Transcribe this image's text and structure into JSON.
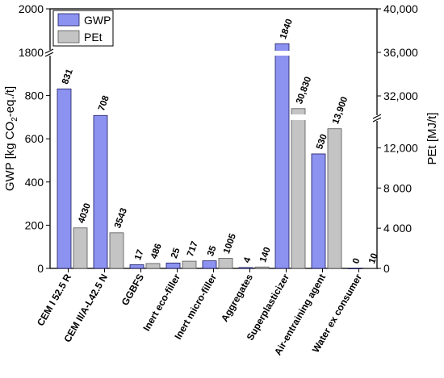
{
  "chart_data": {
    "type": "bar",
    "categories": [
      "CEM I 52.5 R",
      "CEM II/A-L42.5 N",
      "GGBFS",
      "Inert eco-filler",
      "Inert micro-filler",
      "Aggregates",
      "Superplasticizer",
      "Air-entraining agent",
      "Water ex consumer"
    ],
    "series": [
      {
        "name": "GWP",
        "axis": "left",
        "color": "#8c92f0",
        "values": [
          831,
          708,
          17,
          25,
          35,
          4,
          1840,
          530,
          0
        ],
        "labels": [
          "831",
          "708",
          "17",
          "25",
          "35",
          "4",
          "1840",
          "530",
          "0"
        ]
      },
      {
        "name": "PEt",
        "axis": "right",
        "color": "#c4c4c4",
        "values": [
          4030,
          3543,
          486,
          717,
          1005,
          140,
          30830,
          13900,
          10
        ],
        "labels": [
          "4030",
          "3543",
          "486",
          "717",
          "1005",
          "140",
          "30,830",
          "13,900",
          "10"
        ]
      }
    ],
    "ylabel": "GWP [kg CO",
    "ylabel_sub": "2",
    "ylabel_tail": "-eq./t]",
    "y2label": "PEt [MJ/t]",
    "y_axis": {
      "scale": "broken",
      "segments": [
        [
          0,
          1000
        ],
        [
          1800,
          2000
        ]
      ],
      "ticks": [
        0,
        200,
        400,
        600,
        800,
        1800,
        2000
      ],
      "tick_labels": [
        "0",
        "200",
        "400",
        "600",
        "800",
        "1800",
        "2000"
      ]
    },
    "y2_axis": {
      "scale": "broken",
      "segments": [
        [
          0,
          15000
        ],
        [
          30000,
          40000
        ]
      ],
      "ticks": [
        0,
        4000,
        8000,
        12000,
        32000,
        36000,
        40000
      ],
      "tick_labels": [
        "0",
        "4 000",
        "8 000",
        "12,000",
        "32,000",
        "36,000",
        "40,000"
      ]
    },
    "legend": {
      "placement": "top-left"
    },
    "grid": false
  }
}
